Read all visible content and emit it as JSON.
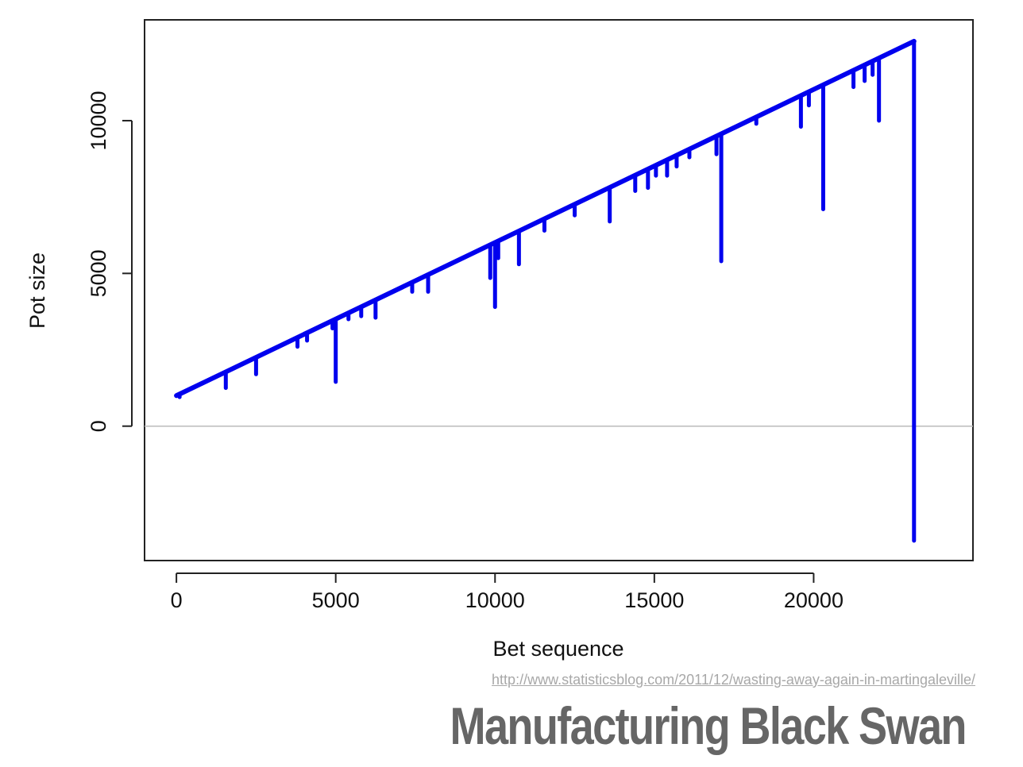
{
  "chart_data": {
    "type": "line",
    "title": "",
    "xlabel": "Bet sequence",
    "ylabel": "Pot size",
    "xlim": [
      -1000,
      25000
    ],
    "ylim": [
      -4400,
      13300
    ],
    "x_ticks": [
      0,
      5000,
      10000,
      15000,
      20000
    ],
    "x_tick_labels": [
      "0",
      "5000",
      "10000",
      "15000",
      "20000"
    ],
    "y_ticks": [
      0,
      5000,
      10000
    ],
    "y_tick_labels": [
      "0",
      "5000",
      "10000"
    ],
    "reference_line": {
      "y": 0,
      "color": "#bbbbbb"
    },
    "line_color": "#0000ee",
    "grid": false,
    "series": [
      {
        "trend": {
          "x": [
            0,
            23150
          ],
          "y": [
            1000,
            12600
          ]
        },
        "dips": [
          {
            "x": 100,
            "y": 950
          },
          {
            "x": 1550,
            "y": 1250
          },
          {
            "x": 2500,
            "y": 1700
          },
          {
            "x": 3800,
            "y": 2600
          },
          {
            "x": 4100,
            "y": 2800
          },
          {
            "x": 4900,
            "y": 3200
          },
          {
            "x": 5000,
            "y": 1450
          },
          {
            "x": 5400,
            "y": 3500
          },
          {
            "x": 5800,
            "y": 3600
          },
          {
            "x": 6250,
            "y": 3550
          },
          {
            "x": 7400,
            "y": 4400
          },
          {
            "x": 7900,
            "y": 4400
          },
          {
            "x": 9850,
            "y": 4850
          },
          {
            "x": 10000,
            "y": 3900
          },
          {
            "x": 10100,
            "y": 5500
          },
          {
            "x": 10750,
            "y": 5300
          },
          {
            "x": 11550,
            "y": 6400
          },
          {
            "x": 12500,
            "y": 6900
          },
          {
            "x": 13600,
            "y": 6700
          },
          {
            "x": 14400,
            "y": 7700
          },
          {
            "x": 14800,
            "y": 7800
          },
          {
            "x": 15050,
            "y": 8200
          },
          {
            "x": 15400,
            "y": 8200
          },
          {
            "x": 15700,
            "y": 8500
          },
          {
            "x": 16100,
            "y": 8800
          },
          {
            "x": 16950,
            "y": 8900
          },
          {
            "x": 17100,
            "y": 5400
          },
          {
            "x": 18200,
            "y": 9900
          },
          {
            "x": 19600,
            "y": 9800
          },
          {
            "x": 19850,
            "y": 10500
          },
          {
            "x": 20300,
            "y": 7100
          },
          {
            "x": 21250,
            "y": 11100
          },
          {
            "x": 21600,
            "y": 11300
          },
          {
            "x": 21850,
            "y": 11500
          },
          {
            "x": 22050,
            "y": 10000
          },
          {
            "x": 23150,
            "y": -3750
          }
        ]
      }
    ]
  },
  "source_url": "http://www.statisticsblog.com/2011/12/wasting-away-again-in-martingaleville/",
  "slide_title": "Manufacturing Black Swan"
}
